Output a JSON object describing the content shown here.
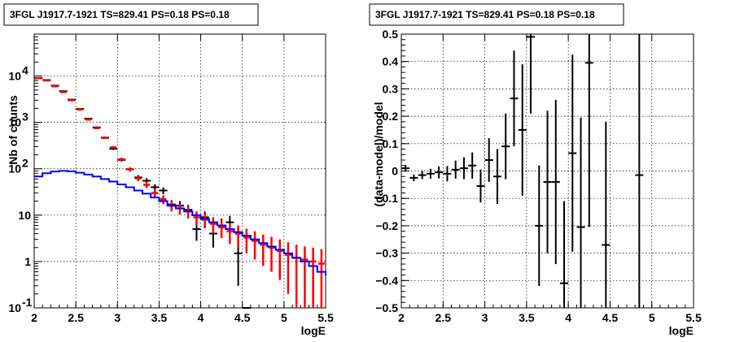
{
  "chart_data": [
    {
      "type": "scatter",
      "title": "3FGL J1917.7-1921 TS=829.41 PS=0.18 PS=0.18",
      "xlabel": "logE",
      "ylabel": "Nb of counts",
      "xlim": [
        2,
        5.5
      ],
      "ylim": [
        0.1,
        80000
      ],
      "yscale": "log",
      "grid": true,
      "x_ticks": [
        "2",
        "2.5",
        "3",
        "3.5",
        "4",
        "4.5",
        "5",
        "5.5"
      ],
      "y_ticks": [
        {
          "value": 0.1,
          "base": "10",
          "exp": "-1"
        },
        {
          "value": 1,
          "label": "1"
        },
        {
          "value": 10,
          "label": "10"
        },
        {
          "value": 100,
          "base": "10",
          "exp": "2"
        },
        {
          "value": 1000,
          "base": "10",
          "exp": "3"
        },
        {
          "value": 10000,
          "base": "10",
          "exp": "4"
        }
      ],
      "colors": {
        "data": "#000000",
        "model_total": "#ff0000",
        "model_source": "#0000ff"
      },
      "series": [
        {
          "role": "data",
          "x": [
            2.05,
            2.15,
            2.25,
            2.35,
            2.45,
            2.55,
            2.65,
            2.75,
            2.85,
            2.95,
            3.05,
            3.15,
            3.25,
            3.35,
            3.45,
            3.55,
            3.65,
            3.75,
            3.85,
            3.95,
            4.05,
            4.15,
            4.25,
            4.35,
            4.45,
            4.55
          ],
          "y": [
            9000,
            8200,
            6200,
            4700,
            3100,
            1950,
            1200,
            780,
            470,
            270,
            155,
            97,
            65,
            55,
            40,
            34,
            17,
            16,
            13,
            5,
            9,
            4,
            6,
            7,
            1.5,
            0.1
          ],
          "yerr": [
            95,
            90,
            79,
            69,
            56,
            44,
            35,
            28,
            22,
            16,
            12,
            10,
            8,
            7.4,
            6.3,
            5.8,
            4.1,
            4,
            3.6,
            2.2,
            3,
            2,
            2.4,
            2.6,
            1.2,
            0
          ]
        },
        {
          "role": "model_total",
          "x": [
            2.05,
            2.15,
            2.25,
            2.35,
            2.45,
            2.55,
            2.65,
            2.75,
            2.85,
            2.95,
            3.05,
            3.15,
            3.25,
            3.35,
            3.45,
            3.55,
            3.65,
            3.75,
            3.85,
            3.95,
            4.05,
            4.15,
            4.25,
            4.35,
            4.45,
            4.55,
            4.65,
            4.75,
            4.85,
            4.95,
            5.05,
            5.15,
            5.25,
            5.35,
            5.45
          ],
          "y": [
            9000,
            8000,
            6000,
            4500,
            3000,
            1900,
            1150,
            750,
            460,
            290,
            160,
            98,
            62,
            45,
            30,
            22,
            16,
            14,
            12,
            9,
            8,
            6.5,
            5.5,
            4.5,
            4,
            3.3,
            2.8,
            2.3,
            2,
            1.7,
            1.4,
            1.2,
            1.1,
            1,
            0.9
          ],
          "yerr": [
            95,
            89,
            77,
            67,
            55,
            44,
            34,
            27,
            21,
            17,
            13,
            10,
            7.9,
            6.7,
            5.5,
            4.7,
            4,
            3.7,
            3.5,
            3,
            2.8,
            2.5,
            2.3,
            2.1,
            2,
            1.8,
            1.7,
            1.5,
            1.4,
            1.3,
            1.2,
            1.1,
            1,
            1,
            0.95
          ]
        },
        {
          "role": "model_source",
          "step_edges": [
            2.0,
            2.1,
            2.2,
            2.3,
            2.4,
            2.5,
            2.6,
            2.7,
            2.8,
            2.9,
            3.0,
            3.1,
            3.2,
            3.3,
            3.4,
            3.5,
            3.6,
            3.7,
            3.8,
            3.9,
            4.0,
            4.1,
            4.2,
            4.3,
            4.4,
            4.5,
            4.6,
            4.7,
            4.8,
            4.9,
            5.0,
            5.1,
            5.2,
            5.3,
            5.4,
            5.5
          ],
          "y": [
            68,
            80,
            87,
            90,
            88,
            82,
            75,
            68,
            60,
            53,
            46,
            40,
            34,
            29,
            24,
            20,
            16,
            14,
            12,
            10,
            8.3,
            7,
            6,
            5,
            4.3,
            3.6,
            3,
            2.5,
            2.1,
            1.8,
            1.5,
            1.2,
            1,
            0.8,
            0.6,
            0.5
          ]
        }
      ]
    },
    {
      "type": "scatter",
      "title": "3FGL J1917.7-1921 TS=829.41 PS=0.18 PS=0.18",
      "xlabel": "logE",
      "ylabel": "(data-model)/model",
      "xlim": [
        2,
        5.5
      ],
      "ylim": [
        -0.5,
        0.5
      ],
      "grid": true,
      "x_ticks": [
        "2",
        "2.5",
        "3",
        "3.5",
        "4",
        "4.5",
        "5",
        "5.5"
      ],
      "y_ticks": [
        "−0.5",
        "−0.4",
        "−0.3",
        "−0.2",
        "−0.1",
        "0",
        "0.1",
        "0.2",
        "0.3",
        "0.4",
        "0.5"
      ],
      "colors": {
        "data": "#000000"
      },
      "series": [
        {
          "role": "residual",
          "x": [
            2.05,
            2.15,
            2.25,
            2.35,
            2.45,
            2.55,
            2.65,
            2.75,
            2.85,
            2.95,
            3.05,
            3.15,
            3.25,
            3.35,
            3.45,
            3.55,
            3.65,
            3.75,
            3.85,
            3.95,
            4.05,
            4.15,
            4.25,
            4.45,
            4.85
          ],
          "y": [
            0.01,
            -0.025,
            -0.015,
            -0.01,
            -0.005,
            -0.01,
            0.005,
            0.01,
            0.02,
            -0.055,
            0.04,
            -0.02,
            0.09,
            0.265,
            0.15,
            0.49,
            -0.2,
            -0.04,
            -0.04,
            -0.41,
            0.065,
            -0.205,
            0.395,
            -0.27,
            -0.015
          ],
          "yerr": [
            0.012,
            0.012,
            0.015,
            0.018,
            0.022,
            0.028,
            0.033,
            0.04,
            0.048,
            0.06,
            0.08,
            0.1,
            0.12,
            0.175,
            0.24,
            0.28,
            0.22,
            0.26,
            0.3,
            0.3,
            0.36,
            0.4,
            0.6,
            0.45,
            1.0
          ]
        }
      ]
    }
  ]
}
